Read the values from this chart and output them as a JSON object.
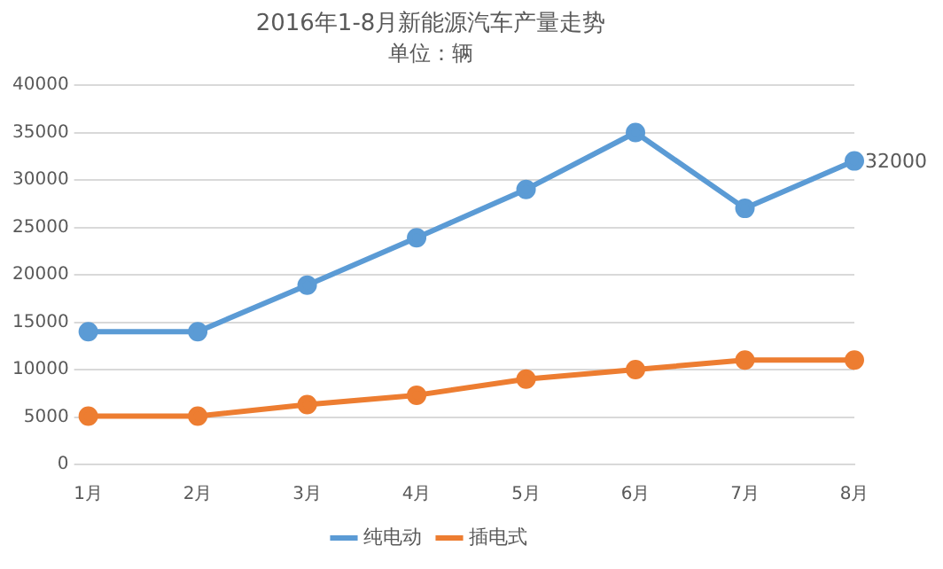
{
  "chart_data": {
    "type": "line",
    "title": "2016年1-8月新能源汽车产量走势",
    "subtitle": "单位：辆",
    "categories": [
      "1月",
      "2月",
      "3月",
      "4月",
      "5月",
      "6月",
      "7月",
      "8月"
    ],
    "series": [
      {
        "name": "纯电动",
        "color": "#5b9bd5",
        "values": [
          14000,
          14000,
          18900,
          23900,
          29000,
          35000,
          27000,
          32000
        ],
        "value_labels": [
          null,
          null,
          null,
          null,
          null,
          null,
          null,
          "32000"
        ]
      },
      {
        "name": "插电式",
        "color": "#ed7d31",
        "values": [
          5100,
          5100,
          6300,
          7300,
          9000,
          10000,
          11000,
          11000
        ]
      }
    ],
    "ylim": [
      0,
      40000
    ],
    "yticks": [
      0,
      5000,
      10000,
      15000,
      20000,
      25000,
      30000,
      35000,
      40000
    ],
    "grid": "y",
    "legend": "bottom",
    "marker": "circle",
    "line_style": "solid"
  }
}
